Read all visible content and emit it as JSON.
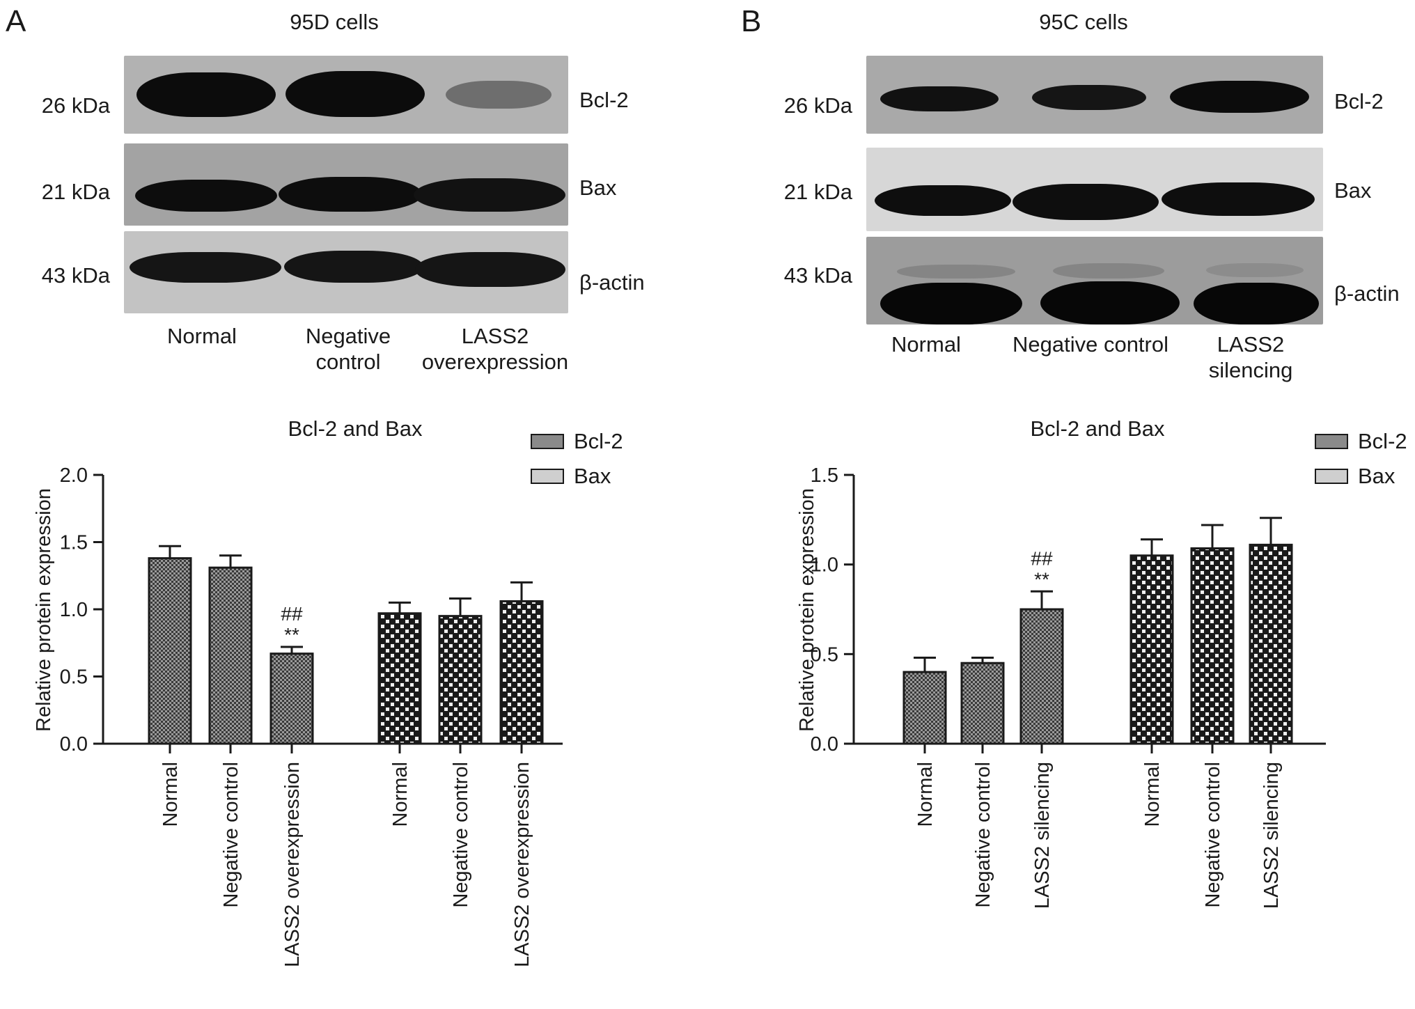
{
  "panels": [
    {
      "letter": "A",
      "cells_title": "95D cells",
      "blot_rows": [
        {
          "kda": "26 kDa",
          "protein": "Bcl-2"
        },
        {
          "kda": "21 kDa",
          "protein": "Bax"
        },
        {
          "kda": "43 kDa",
          "protein": "β-actin"
        }
      ],
      "lanes": [
        "Normal",
        "Negative control",
        "LASS2 overexpression"
      ],
      "chart_title": "Bcl-2 and Bax",
      "legend": [
        "Bcl-2",
        "Bax"
      ],
      "ylabel": "Relative protein expression",
      "annotation_hash": "##",
      "annotation_star": "**"
    },
    {
      "letter": "B",
      "cells_title": "95C cells",
      "blot_rows": [
        {
          "kda": "26 kDa",
          "protein": "Bcl-2"
        },
        {
          "kda": "21 kDa",
          "protein": "Bax"
        },
        {
          "kda": "43 kDa",
          "protein": "β-actin"
        }
      ],
      "lanes": [
        "Normal",
        "Negative control",
        "LASS2 silencing"
      ],
      "chart_title": "Bcl-2 and Bax",
      "legend": [
        "Bcl-2",
        "Bax"
      ],
      "ylabel": "Relative protein expression",
      "annotation_hash": "##",
      "annotation_star": "**"
    }
  ],
  "chart_data": [
    {
      "type": "bar",
      "title": "Bcl-2 and Bax",
      "ylabel": "Relative protein expression",
      "xlabel": "",
      "ylim": [
        0,
        2.0
      ],
      "yticks": [
        "0.0",
        "0.5",
        "1.0",
        "1.5",
        "2.0"
      ],
      "categories": [
        "Normal",
        "Negative control",
        "LASS2 overexpression"
      ],
      "series": [
        {
          "name": "Bcl-2",
          "values": [
            1.38,
            1.31,
            0.67
          ],
          "errors": [
            0.09,
            0.09,
            0.05
          ],
          "pattern": "fine"
        },
        {
          "name": "Bax",
          "values": [
            0.97,
            0.95,
            1.06
          ],
          "errors": [
            0.08,
            0.13,
            0.14
          ],
          "pattern": "checker"
        }
      ],
      "annotations": [
        {
          "series": 0,
          "category": 2,
          "lines": [
            "##",
            "**"
          ]
        }
      ],
      "legend_position": "top-right",
      "grid": false
    },
    {
      "type": "bar",
      "title": "Bcl-2 and Bax",
      "ylabel": "Relative protein expression",
      "xlabel": "",
      "ylim": [
        0,
        1.5
      ],
      "yticks": [
        "0.0",
        "0.5",
        "1.0",
        "1.5"
      ],
      "categories": [
        "Normal",
        "Negative control",
        "LASS2 silencing"
      ],
      "series": [
        {
          "name": "Bcl-2",
          "values": [
            0.4,
            0.45,
            0.75
          ],
          "errors": [
            0.08,
            0.03,
            0.1
          ],
          "pattern": "fine"
        },
        {
          "name": "Bax",
          "values": [
            1.05,
            1.09,
            1.11
          ],
          "errors": [
            0.09,
            0.13,
            0.15
          ],
          "pattern": "checker"
        }
      ],
      "annotations": [
        {
          "series": 0,
          "category": 2,
          "lines": [
            "##",
            "**"
          ]
        }
      ],
      "legend_position": "top-right",
      "grid": false
    }
  ]
}
